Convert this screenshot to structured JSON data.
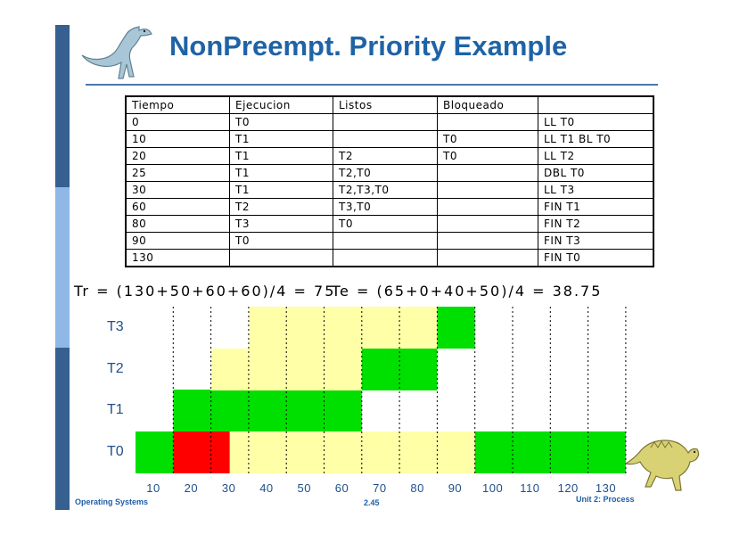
{
  "slide": {
    "title": "NonPreempt. Priority Example",
    "footer_left": "Operating Systems",
    "footer_center": "2.45",
    "footer_right": "Unit 2: Process",
    "colors": {
      "title": "#1f63a6",
      "sidebar_dark": "#35608f",
      "sidebar_light": "#8fb8e6",
      "running": "#00e000",
      "ready": "#ffffa8",
      "blocked": "#ff0000"
    }
  },
  "table": {
    "headers": [
      "Tiempo",
      "Ejecucion",
      "Listos",
      "Bloqueado",
      ""
    ],
    "rows": [
      [
        "0",
        "T0",
        "",
        "",
        "LL T0"
      ],
      [
        "10",
        "T1",
        "",
        "T0",
        "LL T1 BL T0"
      ],
      [
        "20",
        "T1",
        "T2",
        "T0",
        "LL T2"
      ],
      [
        "25",
        "T1",
        "T2,T0",
        "",
        "DBL T0"
      ],
      [
        "30",
        "T1",
        "T2,T3,T0",
        "",
        "LL T3"
      ],
      [
        "60",
        "T2",
        "T3,T0",
        "",
        "FIN T1"
      ],
      [
        "80",
        "T3",
        "T0",
        "",
        "FIN T2"
      ],
      [
        "90",
        "T0",
        "",
        "",
        "FIN T3"
      ],
      [
        "130",
        "",
        "",
        "",
        "FIN T0"
      ]
    ]
  },
  "formulas": {
    "tr": "Tr = (130+50+60+60)/4 = 75",
    "te": "Te = (65+0+40+50)/4 = 38.75"
  },
  "chart_data": {
    "type": "gantt",
    "lanes": [
      "T0",
      "T1",
      "T2",
      "T3"
    ],
    "x_ticks": [
      "10",
      "20",
      "30",
      "40",
      "50",
      "60",
      "70",
      "80",
      "90",
      "100",
      "110",
      "120",
      "130"
    ],
    "xlim": [
      0,
      130
    ],
    "segments": [
      {
        "lane": "T0",
        "start": 0,
        "end": 10,
        "state": "running"
      },
      {
        "lane": "T0",
        "start": 10,
        "end": 25,
        "state": "blocked"
      },
      {
        "lane": "T0",
        "start": 25,
        "end": 90,
        "state": "ready"
      },
      {
        "lane": "T0",
        "start": 90,
        "end": 130,
        "state": "running"
      },
      {
        "lane": "T1",
        "start": 10,
        "end": 60,
        "state": "running"
      },
      {
        "lane": "T2",
        "start": 20,
        "end": 60,
        "state": "ready"
      },
      {
        "lane": "T2",
        "start": 60,
        "end": 80,
        "state": "running"
      },
      {
        "lane": "T3",
        "start": 30,
        "end": 80,
        "state": "ready"
      },
      {
        "lane": "T3",
        "start": 80,
        "end": 90,
        "state": "running"
      }
    ]
  }
}
